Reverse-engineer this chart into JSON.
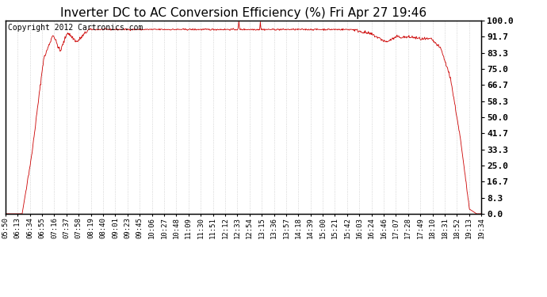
{
  "title": "Inverter DC to AC Conversion Efficiency (%) Fri Apr 27 19:46",
  "copyright": "Copyright 2012 Cartronics.com",
  "ylabel_right": [
    "100.0",
    "91.7",
    "83.3",
    "75.0",
    "66.7",
    "58.3",
    "50.0",
    "41.7",
    "33.3",
    "25.0",
    "16.7",
    "8.3",
    "0.0"
  ],
  "yticks_right": [
    100.0,
    91.7,
    83.3,
    75.0,
    66.7,
    58.3,
    50.0,
    41.7,
    33.3,
    25.0,
    16.7,
    8.3,
    0.0
  ],
  "ylim": [
    0.0,
    100.0
  ],
  "line_color": "#cc0000",
  "background_color": "#ffffff",
  "grid_color": "#bbbbbb",
  "title_fontsize": 11,
  "copyright_fontsize": 7,
  "xtick_fontsize": 6.5,
  "ytick_fontsize": 8,
  "x_labels": [
    "05:50",
    "06:13",
    "06:34",
    "06:55",
    "07:16",
    "07:37",
    "07:58",
    "08:19",
    "08:40",
    "09:01",
    "09:23",
    "09:45",
    "10:06",
    "10:27",
    "10:48",
    "11:09",
    "11:30",
    "11:51",
    "12:12",
    "12:33",
    "12:54",
    "13:15",
    "13:36",
    "13:57",
    "14:18",
    "14:39",
    "15:00",
    "15:21",
    "15:42",
    "16:03",
    "16:24",
    "16:46",
    "17:07",
    "17:28",
    "17:49",
    "18:10",
    "18:31",
    "18:52",
    "19:13",
    "19:34"
  ]
}
